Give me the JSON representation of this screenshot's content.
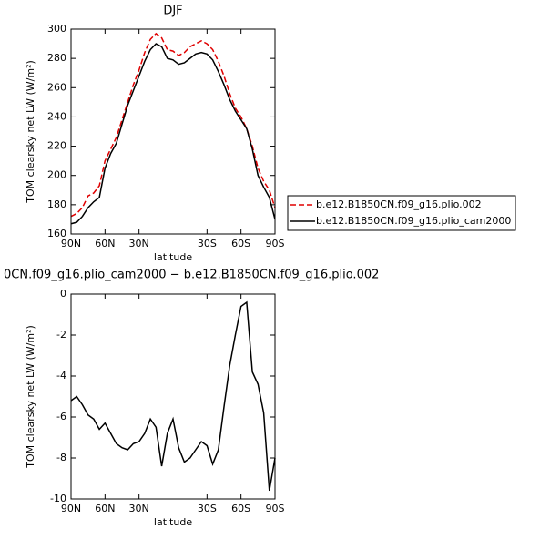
{
  "chart_data": [
    {
      "type": "line",
      "title": "DJF",
      "xlabel": "latitude",
      "ylabel": "TOM clearsky net LW (W/m²)",
      "x": [
        90,
        85,
        80,
        75,
        70,
        65,
        60,
        55,
        50,
        45,
        40,
        35,
        30,
        25,
        20,
        15,
        10,
        5,
        0,
        -5,
        -10,
        -15,
        -20,
        -25,
        -30,
        -35,
        -40,
        -45,
        -50,
        -55,
        -60,
        -65,
        -70,
        -75,
        -80,
        -85,
        -90
      ],
      "series": [
        {
          "name": "b.e12.B1850CN.f09_g16.plio.002",
          "color": "#e00000",
          "style": "dashed",
          "values": [
            172,
            174,
            178,
            186,
            188,
            193,
            210,
            218,
            226,
            238,
            250,
            262,
            272,
            284,
            293,
            297,
            294,
            286,
            285,
            282,
            284,
            288,
            290,
            292,
            290,
            286,
            278,
            268,
            256,
            246,
            240,
            232,
            220,
            205,
            196,
            190,
            178
          ]
        },
        {
          "name": "b.e12.B1850CN.f09_g16.plio_cam2000",
          "color": "#000000",
          "style": "solid",
          "values": [
            167,
            168,
            172,
            178,
            182,
            185,
            205,
            215,
            222,
            235,
            248,
            258,
            268,
            278,
            286,
            290,
            288,
            280,
            279,
            276,
            277,
            280,
            283,
            284,
            283,
            279,
            271,
            262,
            252,
            244,
            238,
            232,
            218,
            200,
            192,
            185,
            170
          ]
        }
      ],
      "xlim": [
        90,
        -90
      ],
      "xticks": [
        {
          "value": 90,
          "label": "90N"
        },
        {
          "value": 60,
          "label": "60N"
        },
        {
          "value": 30,
          "label": "30N"
        },
        {
          "value": -30,
          "label": "30S"
        },
        {
          "value": -60,
          "label": "60S"
        },
        {
          "value": -90,
          "label": "90S"
        }
      ],
      "ylim": [
        160,
        300
      ],
      "yticks": [
        160,
        180,
        200,
        220,
        240,
        260,
        280,
        300
      ],
      "legend": "outside-right"
    },
    {
      "type": "line",
      "title": "0CN.f09_g16.plio_cam2000 − b.e12.B1850CN.f09_g16.plio.002",
      "xlabel": "latitude",
      "ylabel": "TOM clearsky net LW (W/m²)",
      "x": [
        90,
        85,
        80,
        75,
        70,
        65,
        60,
        55,
        50,
        45,
        40,
        35,
        30,
        25,
        20,
        15,
        10,
        5,
        0,
        -5,
        -10,
        -15,
        -20,
        -25,
        -30,
        -35,
        -40,
        -45,
        -50,
        -55,
        -60,
        -65,
        -70,
        -75,
        -80,
        -85,
        -90
      ],
      "series": [
        {
          "color": "#000000",
          "style": "solid",
          "values": [
            -5.2,
            -5,
            -5.4,
            -5.9,
            -6.1,
            -6.6,
            -6.3,
            -6.8,
            -7.3,
            -7.5,
            -7.6,
            -7.3,
            -7.2,
            -6.8,
            -6.1,
            -6.5,
            -8.4,
            -6.8,
            -6.1,
            -7.5,
            -8.2,
            -8.0,
            -7.6,
            -7.2,
            -7.4,
            -8.3,
            -7.6,
            -5.5,
            -3.5,
            -2.0,
            -0.6,
            -0.4,
            -3.8,
            -4.4,
            -5.8,
            -9.6,
            -8.0
          ]
        }
      ],
      "xlim": [
        90,
        -90
      ],
      "xticks": [
        {
          "value": 90,
          "label": "90N"
        },
        {
          "value": 60,
          "label": "60N"
        },
        {
          "value": 30,
          "label": "30N"
        },
        {
          "value": -30,
          "label": "30S"
        },
        {
          "value": -60,
          "label": "60S"
        },
        {
          "value": -90,
          "label": "90S"
        }
      ],
      "ylim": [
        -10,
        0
      ],
      "yticks": [
        -10,
        -8,
        -6,
        -4,
        -2,
        0
      ]
    }
  ]
}
